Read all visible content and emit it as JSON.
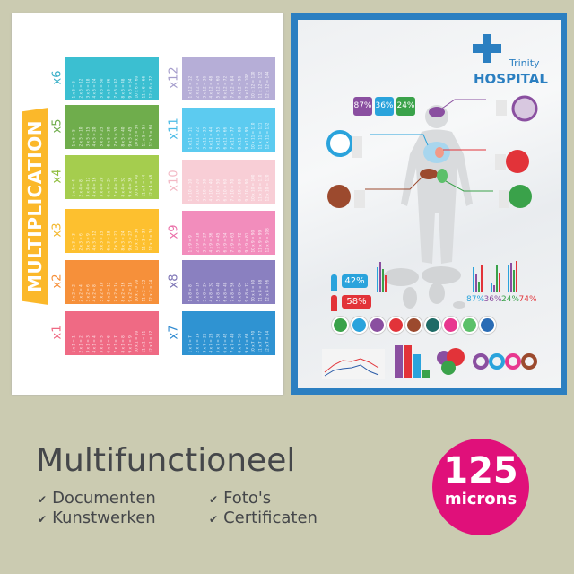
{
  "left_poster": {
    "title": "MULTIPLICATION",
    "tables": [
      {
        "label": "x1",
        "color": "#ef6a84",
        "label_color": "#ef6a84",
        "rows": [
          "1 x 1 = 1",
          "2 x 1 = 2",
          "3 x 1 = 3",
          "4 x 1 = 4",
          "5 x 1 = 5",
          "6 x 1 = 6",
          "7 x 1 = 7",
          "8 x 1 = 8",
          "9 x 1 = 9",
          "10 x 1 = 10",
          "11 x 1 = 11",
          "12 x 1 = 12"
        ]
      },
      {
        "label": "x2",
        "color": "#f6903a",
        "label_color": "#f6903a",
        "rows": [
          "1 x 2 = 2",
          "2 x 2 = 4",
          "3 x 2 = 6",
          "4 x 2 = 8",
          "5 x 2 = 10",
          "6 x 2 = 12",
          "7 x 2 = 14",
          "8 x 2 = 16",
          "9 x 2 = 18",
          "10 x 2 = 20",
          "11 x 2 = 22",
          "12 x 2 = 24"
        ]
      },
      {
        "label": "x3",
        "color": "#fdc02f",
        "label_color": "#f3b72b",
        "rows": [
          "1 x 3 = 3",
          "2 x 3 = 6",
          "3 x 3 = 9",
          "4 x 3 = 12",
          "5 x 3 = 15",
          "6 x 3 = 18",
          "7 x 3 = 21",
          "8 x 3 = 24",
          "9 x 3 = 27",
          "10 x 3 = 30",
          "11 x 3 = 33",
          "12 x 3 = 36"
        ]
      },
      {
        "label": "x4",
        "color": "#a5cd4e",
        "label_color": "#8fbd3d",
        "rows": [
          "1 x 4 = 4",
          "2 x 4 = 8",
          "3 x 4 = 12",
          "4 x 4 = 16",
          "5 x 4 = 20",
          "6 x 4 = 24",
          "7 x 4 = 28",
          "8 x 4 = 32",
          "9 x 4 = 36",
          "10 x 4 = 40",
          "11 x 4 = 44",
          "12 x 4 = 48"
        ]
      },
      {
        "label": "x5",
        "color": "#6fad4c",
        "label_color": "#6fad4c",
        "rows": [
          "1 x 5 = 5",
          "2 x 5 = 10",
          "3 x 5 = 15",
          "4 x 5 = 20",
          "5 x 5 = 25",
          "6 x 5 = 30",
          "7 x 5 = 35",
          "8 x 5 = 40",
          "9 x 5 = 45",
          "10 x 5 = 50",
          "11 x 5 = 55",
          "12 x 5 = 60"
        ]
      },
      {
        "label": "x6",
        "color": "#3bbfd1",
        "label_color": "#3bb0c8",
        "rows": [
          "1 x 6 = 6",
          "2 x 6 = 12",
          "3 x 6 = 18",
          "4 x 6 = 24",
          "5 x 6 = 30",
          "6 x 6 = 36",
          "7 x 6 = 42",
          "8 x 6 = 48",
          "9 x 6 = 54",
          "10 x 6 = 60",
          "11 x 6 = 66",
          "12 x 6 = 72"
        ]
      },
      {
        "label": "x7",
        "color": "#2f93d2",
        "label_color": "#2f8ad0",
        "rows": [
          "1 x 7 = 7",
          "2 x 7 = 14",
          "3 x 7 = 21",
          "4 x 7 = 28",
          "5 x 7 = 35",
          "6 x 7 = 42",
          "7 x 7 = 49",
          "8 x 7 = 56",
          "9 x 7 = 63",
          "10 x 7 = 70",
          "11 x 7 = 77",
          "12 x 7 = 84"
        ]
      },
      {
        "label": "x8",
        "color": "#8a80c0",
        "label_color": "#7d74b5",
        "rows": [
          "1 x 8 = 8",
          "2 x 8 = 16",
          "3 x 8 = 24",
          "4 x 8 = 32",
          "5 x 8 = 40",
          "6 x 8 = 48",
          "7 x 8 = 56",
          "8 x 8 = 64",
          "9 x 8 = 72",
          "10 x 8 = 80",
          "11 x 8 = 88",
          "12 x 8 = 96"
        ]
      },
      {
        "label": "x9",
        "color": "#f28dbc",
        "label_color": "#ea6fa8",
        "rows": [
          "1 x 9 = 9",
          "2 x 9 = 18",
          "3 x 9 = 27",
          "4 x 9 = 36",
          "5 x 9 = 45",
          "6 x 9 = 54",
          "7 x 9 = 63",
          "8 x 9 = 72",
          "9 x 9 = 81",
          "10 x 9 = 90",
          "11 x 9 = 99",
          "12 x 9 = 108"
        ]
      },
      {
        "label": "x10",
        "color": "#f8ced6",
        "label_color": "#f3b8c4",
        "rows": [
          "1 x 10 = 10",
          "2 x 10 = 20",
          "3 x 10 = 30",
          "4 x 10 = 40",
          "5 x 10 = 50",
          "6 x 10 = 60",
          "7 x 10 = 70",
          "8 x 10 = 80",
          "9 x 10 = 90",
          "10 x 10 = 100",
          "11 x 10 = 110",
          "12 x 10 = 120"
        ]
      },
      {
        "label": "x11",
        "color": "#5ccbf0",
        "label_color": "#4bbbe6",
        "rows": [
          "1 x 11 = 11",
          "2 x 11 = 22",
          "3 x 11 = 33",
          "4 x 11 = 44",
          "5 x 11 = 55",
          "6 x 11 = 66",
          "7 x 11 = 77",
          "8 x 11 = 88",
          "9 x 11 = 99",
          "10 x 11 = 110",
          "11 x 11 = 121",
          "12 x 11 = 132"
        ]
      },
      {
        "label": "x12",
        "color": "#b6aed7",
        "label_color": "#a59dcc",
        "rows": [
          "1 x 12 = 12",
          "2 x 12 = 24",
          "3 x 12 = 36",
          "4 x 12 = 48",
          "5 x 12 = 60",
          "6 x 12 = 72",
          "7 x 12 = 84",
          "8 x 12 = 96",
          "9 x 12 = 108",
          "10 x 12 = 120",
          "11 x 12 = 132",
          "12 x 12 = 144"
        ]
      }
    ]
  },
  "right_poster": {
    "brand_small": "Trinity",
    "brand_large": "HOSPITAL",
    "frame_color": "#2b7fc1",
    "top_stats": [
      {
        "value": "87%",
        "color": "#8a4fa0"
      },
      {
        "value": "36%",
        "color": "#2aa3dc"
      },
      {
        "value": "24%",
        "color": "#3aa24a"
      }
    ],
    "gender_stats": [
      {
        "value": "42%",
        "color": "#2aa3dc"
      },
      {
        "value": "58%",
        "color": "#e23339"
      }
    ],
    "bar_labels": [
      {
        "value": "87%",
        "color": "#2aa3dc"
      },
      {
        "value": "36%",
        "color": "#8a4fa0"
      },
      {
        "value": "24%",
        "color": "#3aa24a"
      },
      {
        "value": "74%",
        "color": "#e23339"
      }
    ],
    "organ_icons": [
      {
        "name": "stomach",
        "color": "#3aa24a"
      },
      {
        "name": "lungs",
        "color": "#2aa3dc"
      },
      {
        "name": "brain",
        "color": "#8a4fa0"
      },
      {
        "name": "heart",
        "color": "#e23339"
      },
      {
        "name": "liver",
        "color": "#9c4a2e"
      },
      {
        "name": "tooth",
        "color": "#1e6b66"
      },
      {
        "name": "heart-love",
        "color": "#e8388f"
      },
      {
        "name": "bed",
        "color": "#5cc06a"
      },
      {
        "name": "apple",
        "color": "#2a6cb5"
      }
    ]
  },
  "footer": {
    "title": "Multifunctioneel",
    "features": [
      "Documenten",
      "Kunstwerken",
      "Foto's",
      "Certificaten"
    ],
    "check_icon": "✔",
    "badge": {
      "number": "125",
      "unit": "microns",
      "color": "#e0107a"
    }
  }
}
